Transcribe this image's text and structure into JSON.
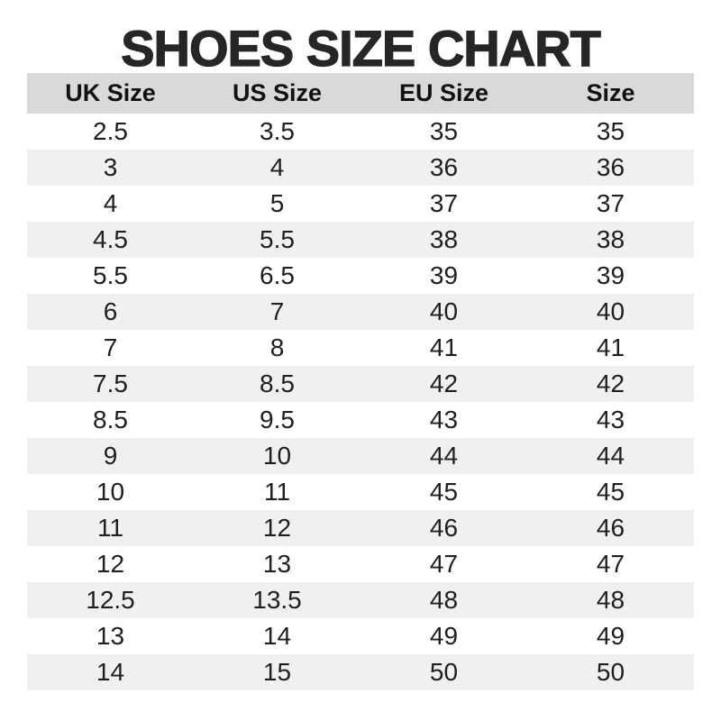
{
  "chart_data": {
    "type": "table",
    "title": "SHOES SIZE CHART",
    "columns": [
      "UK Size",
      "US Size",
      "EU Size",
      "Size"
    ],
    "rows": [
      [
        "2.5",
        "3.5",
        "35",
        "35"
      ],
      [
        "3",
        "4",
        "36",
        "36"
      ],
      [
        "4",
        "5",
        "37",
        "37"
      ],
      [
        "4.5",
        "5.5",
        "38",
        "38"
      ],
      [
        "5.5",
        "6.5",
        "39",
        "39"
      ],
      [
        "6",
        "7",
        "40",
        "40"
      ],
      [
        "7",
        "8",
        "41",
        "41"
      ],
      [
        "7.5",
        "8.5",
        "42",
        "42"
      ],
      [
        "8.5",
        "9.5",
        "43",
        "43"
      ],
      [
        "9",
        "10",
        "44",
        "44"
      ],
      [
        "10",
        "11",
        "45",
        "45"
      ],
      [
        "11",
        "12",
        "46",
        "46"
      ],
      [
        "12",
        "13",
        "47",
        "47"
      ],
      [
        "12.5",
        "13.5",
        "48",
        "48"
      ],
      [
        "13",
        "14",
        "49",
        "49"
      ],
      [
        "14",
        "15",
        "50",
        "50"
      ]
    ],
    "layout": {
      "grid": "off",
      "row_striping": "alternating, first data row white",
      "alignment": "all cells centered"
    }
  },
  "colors": {
    "title_color": "#262626",
    "header_bg": "#d9d9d9",
    "row_alt_bg": "#f0f0f0",
    "text_color": "#1f1f1f",
    "page_bg": "#ffffff"
  }
}
